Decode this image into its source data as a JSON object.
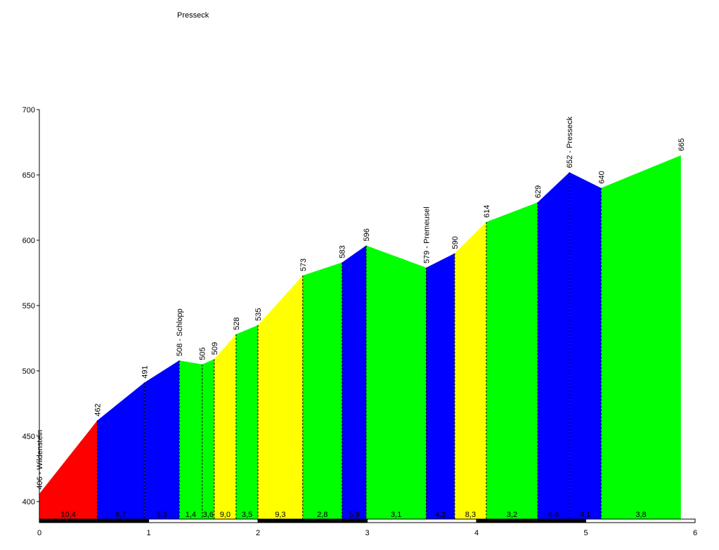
{
  "chart_data": {
    "type": "area",
    "title": "Presseck",
    "xlabel": "",
    "ylabel": "",
    "xlim": [
      0,
      6
    ],
    "ylim": [
      390,
      700
    ],
    "x_ticks": [
      "0",
      "1",
      "2",
      "3",
      "4",
      "5",
      "6"
    ],
    "y_ticks": [
      "400",
      "450",
      "500",
      "550",
      "600",
      "650",
      "700"
    ],
    "points": [
      {
        "x": 0.0,
        "y": 406,
        "label": "406 - Wildenstein"
      },
      {
        "x": 0.53,
        "y": 462,
        "label": "462"
      },
      {
        "x": 0.96,
        "y": 491,
        "label": "491"
      },
      {
        "x": 1.28,
        "y": 508,
        "label": "508 - Schlopp"
      },
      {
        "x": 1.49,
        "y": 505,
        "label": "505"
      },
      {
        "x": 1.6,
        "y": 509,
        "label": "509"
      },
      {
        "x": 1.8,
        "y": 528,
        "label": "528"
      },
      {
        "x": 2.0,
        "y": 535,
        "label": "535"
      },
      {
        "x": 2.41,
        "y": 573,
        "label": "573"
      },
      {
        "x": 2.77,
        "y": 583,
        "label": "583"
      },
      {
        "x": 2.99,
        "y": 596,
        "label": "596"
      },
      {
        "x": 3.54,
        "y": 579,
        "label": "579 - Premeusel"
      },
      {
        "x": 3.8,
        "y": 590,
        "label": "590"
      },
      {
        "x": 4.09,
        "y": 614,
        "label": "614"
      },
      {
        "x": 4.56,
        "y": 629,
        "label": "629"
      },
      {
        "x": 4.85,
        "y": 652,
        "label": "652 - Presseck"
      },
      {
        "x": 5.14,
        "y": 640,
        "label": "640"
      },
      {
        "x": 5.87,
        "y": 665,
        "label": "665"
      }
    ],
    "segments": [
      {
        "gradient": "10,4",
        "color": "#ff0000"
      },
      {
        "gradient": "6,7",
        "color": "#0000ff"
      },
      {
        "gradient": "5,3",
        "color": "#0000ff"
      },
      {
        "gradient": "1,4",
        "color": "#00ff00"
      },
      {
        "gradient": "3,6",
        "color": "#00ff00"
      },
      {
        "gradient": "9,0",
        "color": "#ffff00"
      },
      {
        "gradient": "3,5",
        "color": "#00ff00"
      },
      {
        "gradient": "9,3",
        "color": "#ffff00"
      },
      {
        "gradient": "2,8",
        "color": "#00ff00"
      },
      {
        "gradient": "5,9",
        "color": "#0000ff"
      },
      {
        "gradient": "3,1",
        "color": "#00ff00"
      },
      {
        "gradient": "4,2",
        "color": "#0000ff"
      },
      {
        "gradient": "8,3",
        "color": "#ffff00"
      },
      {
        "gradient": "3,2",
        "color": "#00ff00"
      },
      {
        "gradient": "6,6",
        "color": "#0000ff"
      },
      {
        "gradient": "4,1",
        "color": "#0000ff"
      },
      {
        "gradient": "3,8",
        "color": "#00ff00"
      }
    ],
    "grid": false,
    "legend": "none"
  }
}
